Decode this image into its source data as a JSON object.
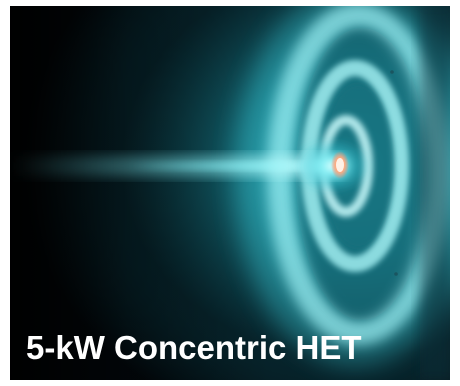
{
  "image": {
    "subject": "hall-effect-thruster-plume",
    "caption": "5-kW Concentric HET",
    "colors": {
      "background": "#02080c",
      "plume": "#3fd9e6",
      "core": "#ffb08a",
      "caption_text": "#ffffff"
    }
  }
}
